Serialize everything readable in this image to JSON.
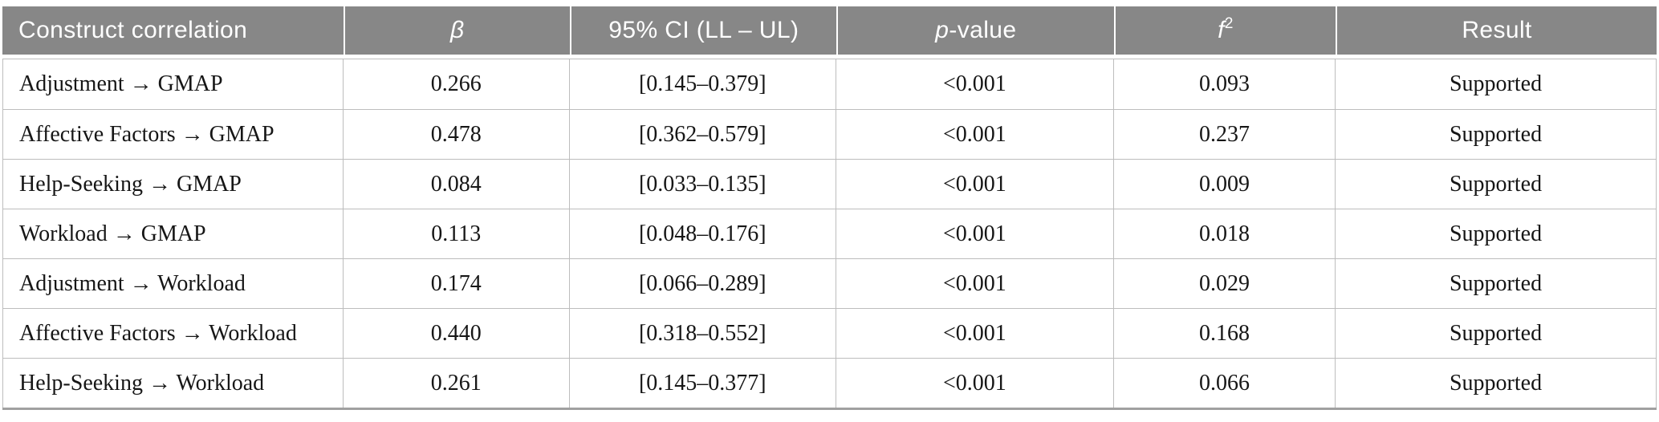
{
  "table": {
    "columns": [
      {
        "id": "construct",
        "header": [
          {
            "t": "Construct correlation"
          }
        ]
      },
      {
        "id": "beta",
        "header": [
          {
            "t": "β",
            "italic": true
          }
        ]
      },
      {
        "id": "ci",
        "header": [
          {
            "t": "95% CI (LL – UL)"
          }
        ]
      },
      {
        "id": "p_value",
        "header": [
          {
            "t": "p",
            "italic": true
          },
          {
            "t": "-value"
          }
        ]
      },
      {
        "id": "f2",
        "header": [
          {
            "t": "f",
            "italic": true
          },
          {
            "t": "2",
            "sup": true
          }
        ]
      },
      {
        "id": "result",
        "header": [
          {
            "t": "Result"
          }
        ]
      }
    ],
    "rows": [
      {
        "construct": "Adjustment → GMAP",
        "beta": "0.266",
        "ci": "[0.145–0.379]",
        "p_value": "<0.001",
        "f2": "0.093",
        "result": "Supported"
      },
      {
        "construct": "Affective Factors → GMAP",
        "beta": "0.478",
        "ci": "[0.362–0.579]",
        "p_value": "<0.001",
        "f2": "0.237",
        "result": "Supported"
      },
      {
        "construct": "Help-Seeking → GMAP",
        "beta": "0.084",
        "ci": "[0.033–0.135]",
        "p_value": "<0.001",
        "f2": "0.009",
        "result": "Supported"
      },
      {
        "construct": "Workload → GMAP",
        "beta": "0.113",
        "ci": "[0.048–0.176]",
        "p_value": "<0.001",
        "f2": "0.018",
        "result": "Supported"
      },
      {
        "construct": "Adjustment → Workload",
        "beta": "0.174",
        "ci": "[0.066–0.289]",
        "p_value": "<0.001",
        "f2": "0.029",
        "result": "Supported"
      },
      {
        "construct": "Affective Factors → Workload",
        "beta": "0.440",
        "ci": "[0.318–0.552]",
        "p_value": "<0.001",
        "f2": "0.168",
        "result": "Supported"
      },
      {
        "construct": "Help-Seeking → Workload",
        "beta": "0.261",
        "ci": "[0.145–0.377]",
        "p_value": "<0.001",
        "f2": "0.066",
        "result": "Supported"
      }
    ]
  },
  "colors": {
    "header_bg": "#878787",
    "header_text": "#ffffff",
    "body_text": "#161616",
    "grid_line": "#bdbdbd",
    "bottom_border": "#a0a0a0",
    "page_bg": "#ffffff"
  }
}
